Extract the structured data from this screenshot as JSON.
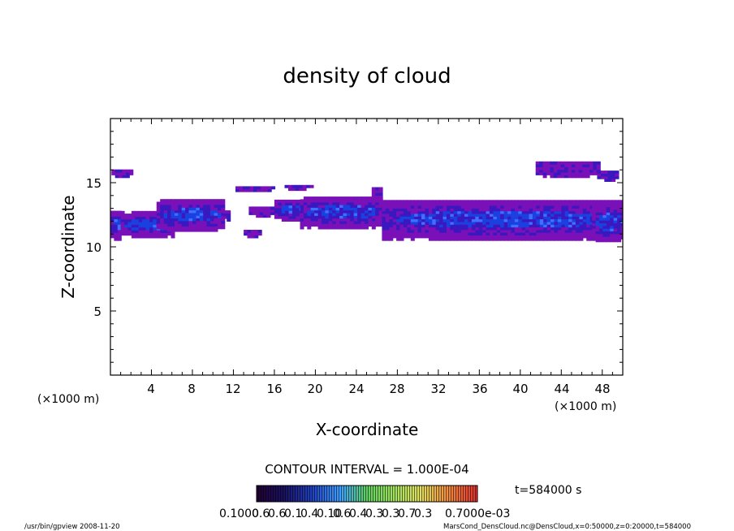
{
  "chart_data": {
    "type": "heatmap",
    "title": "density of cloud",
    "xlabel": "X-coordinate",
    "ylabel": "Z-coordinate",
    "x_unit_left": "(×1000 m)",
    "x_unit_right": "(×1000 m)",
    "xlim": [
      0,
      50
    ],
    "ylim": [
      0,
      20
    ],
    "x_ticks": [
      "4",
      "8",
      "12",
      "16",
      "20",
      "24",
      "28",
      "32",
      "36",
      "40",
      "44",
      "48"
    ],
    "y_ticks": [
      "5",
      "10",
      "15"
    ],
    "cloud_regions": [
      {
        "x": [
          0,
          1.0
        ],
        "z": [
          10.5,
          12.8
        ]
      },
      {
        "x": [
          0.1,
          2.0
        ],
        "z": [
          15.4,
          15.9
        ]
      },
      {
        "x": [
          1.0,
          6.0
        ],
        "z": [
          10.7,
          12.6
        ]
      },
      {
        "x": [
          4.5,
          11.0
        ],
        "z": [
          11.2,
          13.6
        ]
      },
      {
        "x": [
          11.0,
          11.5
        ],
        "z": [
          12.0,
          12.7
        ]
      },
      {
        "x": [
          13.0,
          14.5
        ],
        "z": [
          10.7,
          11.3
        ]
      },
      {
        "x": [
          12.2,
          16.0
        ],
        "z": [
          14.3,
          14.7
        ]
      },
      {
        "x": [
          13.5,
          16.0
        ],
        "z": [
          12.3,
          13.0
        ]
      },
      {
        "x": [
          16.0,
          19.0
        ],
        "z": [
          12.0,
          13.6
        ]
      },
      {
        "x": [
          17.0,
          19.5
        ],
        "z": [
          14.4,
          14.8
        ]
      },
      {
        "x": [
          18.5,
          26.5
        ],
        "z": [
          11.4,
          13.8
        ]
      },
      {
        "x": [
          25.5,
          26.5
        ],
        "z": [
          13.6,
          14.6
        ]
      },
      {
        "x": [
          26.5,
          50.0
        ],
        "z": [
          10.5,
          13.6
        ]
      },
      {
        "x": [
          41.5,
          47.5
        ],
        "z": [
          15.4,
          16.5
        ]
      },
      {
        "x": [
          47.5,
          49.5
        ],
        "z": [
          15.1,
          15.9
        ]
      },
      {
        "x": [
          47.0,
          50.0
        ],
        "z": [
          10.4,
          13.3
        ]
      }
    ],
    "contour_interval": "CONTOUR INTERVAL = 1.000E-04",
    "colorbar_labels": [
      "0.1000",
      "0.6",
      "0.6",
      "0.1",
      "0.4",
      "0.10",
      "0.6",
      "0.4",
      "0.3",
      "0.3",
      "0.7",
      "0.3",
      "0.7000e-03"
    ],
    "time_label": "t=584000 s"
  },
  "footer": {
    "left": "/usr/bin/gpview  2008-11-20",
    "right": "MarsCond_DensCloud.nc@DensCloud,x=0:50000,z=0:20000,t=584000"
  },
  "colors": {
    "cloud_outer": "#7a10b8",
    "cloud_mid": "#3a18c0",
    "cloud_core": "#1a40e0",
    "cloud_peak": "#4070ff"
  }
}
